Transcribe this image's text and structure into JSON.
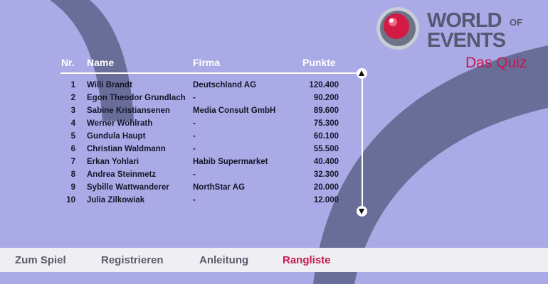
{
  "brand": {
    "line1": "WORLD",
    "of": "OF",
    "line2": "EVENTS",
    "subtitle": "Das Quiz"
  },
  "table": {
    "headers": {
      "nr": "Nr.",
      "name": "Name",
      "firma": "Firma",
      "punkte": "Punkte"
    },
    "rows": [
      {
        "nr": "1",
        "name": "Willi Brandt",
        "firma": "Deutschland AG",
        "punkte": "120.400"
      },
      {
        "nr": "2",
        "name": "Egon Theodor Grundlach",
        "firma": "-",
        "punkte": "90.200"
      },
      {
        "nr": "3",
        "name": "Sabine Kristiansenen",
        "firma": "Media Consult GmbH",
        "punkte": "89.600"
      },
      {
        "nr": "4",
        "name": "Werner Wohlrath",
        "firma": "-",
        "punkte": "75.300"
      },
      {
        "nr": "5",
        "name": "Gundula Haupt",
        "firma": "-",
        "punkte": "60.100"
      },
      {
        "nr": "6",
        "name": "Christian Waldmann",
        "firma": "-",
        "punkte": "55.500"
      },
      {
        "nr": "7",
        "name": "Erkan Yohlari",
        "firma": "Habib Supermarket",
        "punkte": "40.400"
      },
      {
        "nr": "8",
        "name": "Andrea Steinmetz",
        "firma": "-",
        "punkte": "32.300"
      },
      {
        "nr": "9",
        "name": "Sybille Wattwanderer",
        "firma": "NorthStar AG",
        "punkte": "20.000"
      },
      {
        "nr": "10",
        "name": "Julia Zilkowiak",
        "firma": "-",
        "punkte": "12.000"
      }
    ]
  },
  "scroll": {
    "up_icon": "arrow-up-icon",
    "down_icon": "arrow-down-icon"
  },
  "nav": {
    "items": [
      {
        "label": "Zum Spiel",
        "active": false
      },
      {
        "label": "Registrieren",
        "active": false
      },
      {
        "label": "Anleitung",
        "active": false
      },
      {
        "label": "Rangliste",
        "active": true
      }
    ]
  },
  "colors": {
    "background": "#aaaae6",
    "arc": "#696e99",
    "accent": "#c8184d",
    "navbar": "#eeeef3"
  }
}
